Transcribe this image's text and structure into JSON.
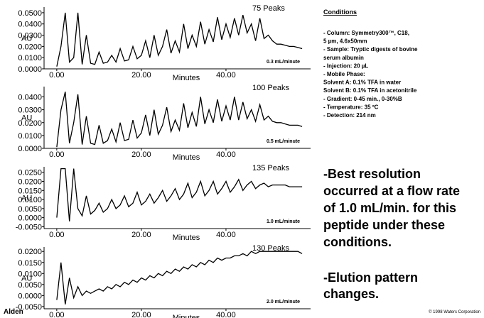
{
  "chart_data": [
    {
      "type": "line",
      "annotation": "75 Peaks",
      "note": "0.3 mL/minute",
      "x_label": "Minutes",
      "y_label": "AU",
      "color": "#000000",
      "x": [
        0,
        1,
        2,
        3,
        4,
        5,
        6,
        7,
        8,
        9,
        10,
        11,
        12,
        13,
        14,
        15,
        16,
        17,
        18,
        19,
        20,
        21,
        22,
        23,
        24,
        25,
        26,
        27,
        28,
        29,
        30,
        31,
        32,
        33,
        34,
        35,
        36,
        37,
        38,
        39,
        40,
        41,
        42,
        43,
        44,
        45,
        46,
        47,
        48,
        49,
        50,
        51,
        52,
        53,
        54,
        55,
        56,
        57,
        58
      ],
      "values": [
        0.002,
        0.02,
        0.05,
        0.006,
        0.01,
        0.05,
        0.004,
        0.03,
        0.005,
        0.004,
        0.015,
        0.005,
        0.006,
        0.012,
        0.006,
        0.018,
        0.007,
        0.008,
        0.02,
        0.009,
        0.012,
        0.025,
        0.01,
        0.03,
        0.012,
        0.02,
        0.035,
        0.014,
        0.025,
        0.015,
        0.04,
        0.018,
        0.03,
        0.02,
        0.042,
        0.022,
        0.035,
        0.024,
        0.046,
        0.026,
        0.04,
        0.028,
        0.045,
        0.03,
        0.048,
        0.032,
        0.04,
        0.025,
        0.045,
        0.027,
        0.03,
        0.025,
        0.022,
        0.022,
        0.021,
        0.02,
        0.02,
        0.019,
        0.018
      ],
      "xlim": [
        -3,
        60
      ],
      "xticks": [
        {
          "value": 0,
          "label": "0.00"
        },
        {
          "value": 20,
          "label": "20.00"
        },
        {
          "value": 40,
          "label": "40.00"
        }
      ],
      "ylim": [
        0,
        0.055
      ],
      "yticks": [
        {
          "value": 0,
          "label": "0.0000"
        },
        {
          "value": 0.01,
          "label": "0.0100"
        },
        {
          "value": 0.02,
          "label": "0.0200"
        },
        {
          "value": 0.03,
          "label": "0.0300"
        },
        {
          "value": 0.04,
          "label": "0.0400"
        },
        {
          "value": 0.05,
          "label": "0.0500"
        }
      ]
    },
    {
      "type": "line",
      "annotation": "100 Peaks",
      "note": "0.5 mL/minute",
      "x_label": "Minutes",
      "y_label": "AU",
      "color": "#000000",
      "x": [
        0,
        1,
        2,
        3,
        4,
        5,
        6,
        7,
        8,
        9,
        10,
        11,
        12,
        13,
        14,
        15,
        16,
        17,
        18,
        19,
        20,
        21,
        22,
        23,
        24,
        25,
        26,
        27,
        28,
        29,
        30,
        31,
        32,
        33,
        34,
        35,
        36,
        37,
        38,
        39,
        40,
        41,
        42,
        43,
        44,
        45,
        46,
        47,
        48,
        49,
        50,
        51,
        52,
        53,
        54,
        55,
        56,
        57,
        58
      ],
      "values": [
        0.001,
        0.03,
        0.044,
        0.004,
        0.02,
        0.042,
        0.003,
        0.025,
        0.004,
        0.003,
        0.018,
        0.004,
        0.006,
        0.015,
        0.005,
        0.02,
        0.006,
        0.007,
        0.022,
        0.008,
        0.012,
        0.026,
        0.01,
        0.03,
        0.011,
        0.018,
        0.032,
        0.013,
        0.022,
        0.014,
        0.035,
        0.016,
        0.028,
        0.017,
        0.04,
        0.019,
        0.03,
        0.02,
        0.038,
        0.021,
        0.033,
        0.022,
        0.04,
        0.022,
        0.036,
        0.023,
        0.03,
        0.021,
        0.034,
        0.022,
        0.025,
        0.021,
        0.02,
        0.02,
        0.019,
        0.018,
        0.018,
        0.018,
        0.017
      ],
      "xlim": [
        -3,
        60
      ],
      "xticks": [
        {
          "value": 0,
          "label": "0.00"
        },
        {
          "value": 20,
          "label": "20.00"
        },
        {
          "value": 40,
          "label": "40.00"
        }
      ],
      "ylim": [
        0,
        0.048
      ],
      "yticks": [
        {
          "value": 0,
          "label": "0.0000"
        },
        {
          "value": 0.01,
          "label": "0.0100"
        },
        {
          "value": 0.02,
          "label": "0.0200"
        },
        {
          "value": 0.03,
          "label": "0.0300"
        },
        {
          "value": 0.04,
          "label": "0.0400"
        }
      ]
    },
    {
      "type": "line",
      "annotation": "135 Peaks",
      "note": "1.0 mL/minute",
      "x_label": "Minutes",
      "y_label": "AU",
      "color": "#000000",
      "x": [
        0,
        1,
        2,
        3,
        4,
        5,
        6,
        7,
        8,
        9,
        10,
        11,
        12,
        13,
        14,
        15,
        16,
        17,
        18,
        19,
        20,
        21,
        22,
        23,
        24,
        25,
        26,
        27,
        28,
        29,
        30,
        31,
        32,
        33,
        34,
        35,
        36,
        37,
        38,
        39,
        40,
        41,
        42,
        43,
        44,
        45,
        46,
        47,
        48,
        49,
        50,
        51,
        52,
        53,
        54,
        55,
        56,
        57,
        58
      ],
      "values": [
        0.0,
        0.027,
        0.027,
        -0.002,
        0.027,
        0.005,
        0.001,
        0.012,
        0.002,
        0.004,
        0.008,
        0.003,
        0.005,
        0.01,
        0.005,
        0.007,
        0.012,
        0.006,
        0.008,
        0.014,
        0.007,
        0.009,
        0.013,
        0.008,
        0.011,
        0.015,
        0.009,
        0.012,
        0.016,
        0.01,
        0.013,
        0.019,
        0.011,
        0.014,
        0.02,
        0.012,
        0.015,
        0.02,
        0.013,
        0.016,
        0.02,
        0.014,
        0.017,
        0.021,
        0.015,
        0.018,
        0.02,
        0.016,
        0.018,
        0.019,
        0.017,
        0.018,
        0.018,
        0.018,
        0.018,
        0.017,
        0.017,
        0.017,
        0.017
      ],
      "xlim": [
        -3,
        60
      ],
      "xticks": [
        {
          "value": 0,
          "label": "0.00"
        },
        {
          "value": 20,
          "label": "20.00"
        },
        {
          "value": 40,
          "label": "40.00"
        }
      ],
      "ylim": [
        -0.006,
        0.028
      ],
      "yticks": [
        {
          "value": -0.005,
          "label": "-0.0050"
        },
        {
          "value": 0,
          "label": "0.0000"
        },
        {
          "value": 0.005,
          "label": "0.0050"
        },
        {
          "value": 0.01,
          "label": "0.0100"
        },
        {
          "value": 0.015,
          "label": "0.0150"
        },
        {
          "value": 0.02,
          "label": "0.0200"
        },
        {
          "value": 0.025,
          "label": "0.0250"
        }
      ]
    },
    {
      "type": "line",
      "annotation": "130 Peaks",
      "note": "2.0 mL/minute",
      "x_label": "Minutes",
      "y_label": "AU",
      "color": "#000000",
      "x": [
        0,
        1,
        2,
        3,
        4,
        5,
        6,
        7,
        8,
        9,
        10,
        11,
        12,
        13,
        14,
        15,
        16,
        17,
        18,
        19,
        20,
        21,
        22,
        23,
        24,
        25,
        26,
        27,
        28,
        29,
        30,
        31,
        32,
        33,
        34,
        35,
        36,
        37,
        38,
        39,
        40,
        41,
        42,
        43,
        44,
        45,
        46,
        47,
        48,
        49,
        50,
        51,
        52,
        53,
        54,
        55,
        56,
        57,
        58
      ],
      "values": [
        -0.002,
        0.015,
        -0.004,
        0.008,
        -0.001,
        0.004,
        0.0,
        0.002,
        0.001,
        0.002,
        0.003,
        0.002,
        0.004,
        0.003,
        0.005,
        0.004,
        0.006,
        0.005,
        0.007,
        0.006,
        0.008,
        0.007,
        0.009,
        0.008,
        0.01,
        0.009,
        0.011,
        0.01,
        0.012,
        0.011,
        0.013,
        0.012,
        0.014,
        0.013,
        0.015,
        0.014,
        0.016,
        0.015,
        0.017,
        0.016,
        0.017,
        0.017,
        0.018,
        0.018,
        0.019,
        0.018,
        0.02,
        0.019,
        0.02,
        0.02,
        0.02,
        0.02,
        0.02,
        0.02,
        0.02,
        0.02,
        0.02,
        0.02,
        0.019
      ],
      "xlim": [
        -3,
        60
      ],
      "xticks": [
        {
          "value": 0,
          "label": "0.00"
        },
        {
          "value": 20,
          "label": "20.00"
        },
        {
          "value": 40,
          "label": "40.00"
        }
      ],
      "ylim": [
        -0.006,
        0.022
      ],
      "yticks": [
        {
          "value": -0.005,
          "label": "-0.0050"
        },
        {
          "value": 0,
          "label": "0.0000"
        },
        {
          "value": 0.005,
          "label": "0.0050"
        },
        {
          "value": 0.01,
          "label": "0.0100"
        },
        {
          "value": 0.015,
          "label": "0.0150"
        },
        {
          "value": 0.02,
          "label": "0.0200"
        }
      ]
    }
  ],
  "conditions": {
    "title": "Conditions",
    "lines": [
      "- Column:  Symmetry300™, C18,",
      "5 µm, 4.6x50mm",
      "- Sample:  Tryptic digests of  bovine",
      "serum albumin",
      "- Injection:  20 µL",
      "- Mobile Phase:",
      "Solvent A:  0.1% TFA in water",
      "Solvent B:  0.1% TFA in acetonitrile",
      "- Gradient:  0-45 min., 0-30%B",
      "- Temperature:  35 ºC",
      "- Detection:  214 nm"
    ]
  },
  "conclusion": [
    "-Best resolution",
    "occurred at a flow rate",
    "of 1.0 mL/min. for this",
    "peptide under these",
    "conditions."
  ],
  "observation": [
    "-Elution pattern",
    "changes."
  ],
  "footer": {
    "author": "Alden",
    "copyright": "© 1998 Waters Corporation"
  }
}
